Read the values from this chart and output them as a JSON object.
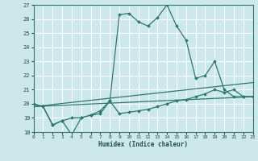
{
  "xlabel": "Humidex (Indice chaleur)",
  "xlim": [
    0,
    23
  ],
  "ylim": [
    18,
    27
  ],
  "yticks": [
    18,
    19,
    20,
    21,
    22,
    23,
    24,
    25,
    26,
    27
  ],
  "xticks": [
    0,
    1,
    2,
    3,
    4,
    5,
    6,
    7,
    8,
    9,
    10,
    11,
    12,
    13,
    14,
    15,
    16,
    17,
    18,
    19,
    20,
    21,
    22,
    23
  ],
  "line_color": "#2a7a6a",
  "bg_color": "#cce8ea",
  "grid_color": "#b8d8da",
  "curve1_x": [
    0,
    1,
    2,
    3,
    4,
    5,
    6,
    7,
    8,
    9,
    10,
    11,
    12,
    13,
    14,
    15,
    16,
    17,
    18,
    19,
    20,
    21,
    22,
    23
  ],
  "curve1_y": [
    20.0,
    19.8,
    18.5,
    18.8,
    17.8,
    19.0,
    19.2,
    19.5,
    20.2,
    26.3,
    26.4,
    25.8,
    25.5,
    26.1,
    27.0,
    25.5,
    24.5,
    21.8,
    22.0,
    23.0,
    21.0,
    20.5,
    20.5,
    20.5
  ],
  "curve2_x": [
    0,
    1,
    2,
    3,
    4,
    5,
    6,
    7,
    8,
    9,
    10,
    11,
    12,
    13,
    14,
    15,
    16,
    17,
    18,
    19,
    20,
    21,
    22,
    23
  ],
  "curve2_y": [
    20.0,
    19.8,
    18.5,
    18.8,
    19.0,
    19.0,
    19.2,
    19.3,
    20.2,
    19.3,
    19.4,
    19.5,
    19.6,
    19.8,
    20.0,
    20.2,
    20.3,
    20.5,
    20.7,
    21.0,
    20.8,
    21.0,
    20.5,
    20.5
  ],
  "line3_x": [
    0,
    23
  ],
  "line3_y": [
    19.8,
    21.5
  ],
  "line4_x": [
    0,
    23
  ],
  "line4_y": [
    19.8,
    20.5
  ]
}
